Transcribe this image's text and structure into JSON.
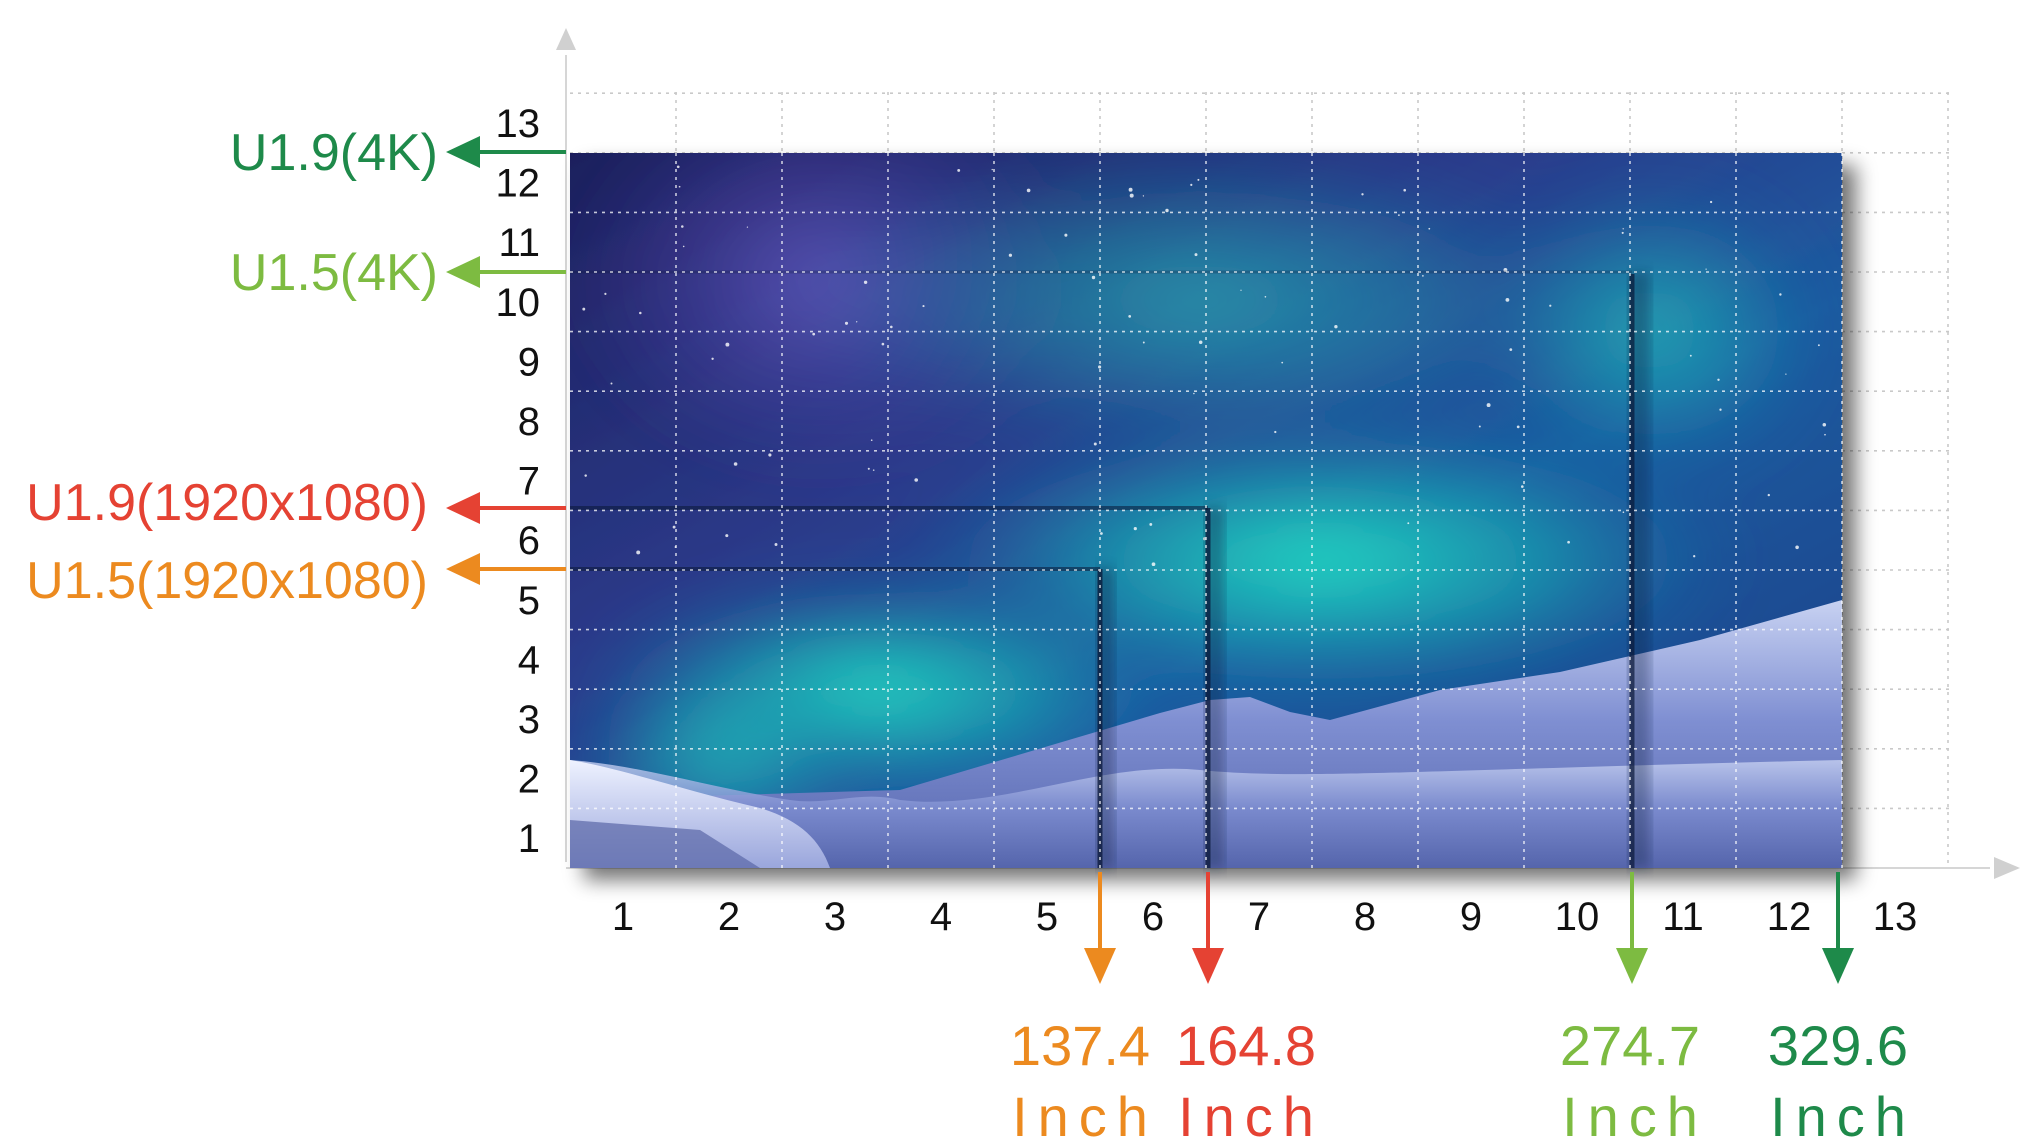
{
  "axes": {
    "x_ticks": [
      "1",
      "2",
      "3",
      "4",
      "5",
      "6",
      "7",
      "8",
      "9",
      "10",
      "11",
      "12",
      "13"
    ],
    "y_ticks": [
      "1",
      "2",
      "3",
      "4",
      "5",
      "6",
      "7",
      "8",
      "9",
      "10",
      "11",
      "12",
      "13"
    ]
  },
  "colors": {
    "orange": "#ec8a1f",
    "red": "#e54233",
    "light_green": "#7dbb41",
    "dark_green": "#1e8a4a"
  },
  "models": [
    {
      "key": "u19_4k",
      "label": "U1.9(4K)",
      "color": "#1e8a4a",
      "width": "329.6",
      "unit": "Inch"
    },
    {
      "key": "u15_4k",
      "label": "U1.5(4K)",
      "color": "#7dbb41",
      "width": "274.7",
      "unit": "Inch"
    },
    {
      "key": "u19_fhd",
      "label": "U1.9(1920x1080)",
      "color": "#e54233",
      "width": "164.8",
      "unit": "Inch"
    },
    {
      "key": "u15_fhd",
      "label": "U1.5(1920x1080)",
      "color": "#ec8a1f",
      "width": "137.4",
      "unit": "Inch"
    }
  ],
  "icons": {
    "x_axis_arrow": "triangle-right-icon",
    "y_axis_arrow": "triangle-up-icon",
    "pointer": "arrow-icon"
  }
}
